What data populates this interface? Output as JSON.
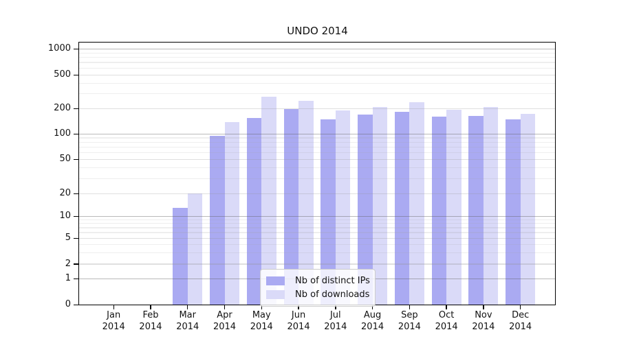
{
  "chart_data": {
    "type": "bar",
    "title": "UNDO 2014",
    "year_label": "2014",
    "categories": [
      "Jan",
      "Feb",
      "Mar",
      "Apr",
      "May",
      "Jun",
      "Jul",
      "Aug",
      "Sep",
      "Oct",
      "Nov",
      "Dec"
    ],
    "series": [
      {
        "name": "Nb of distinct IPs",
        "color": "#aaaaf2",
        "values": [
          0,
          0,
          13,
          95,
          155,
          200,
          150,
          170,
          185,
          160,
          165,
          150
        ]
      },
      {
        "name": "Nb of downloads",
        "color": "#dadaf8",
        "values": [
          0,
          0,
          20,
          140,
          280,
          250,
          190,
          210,
          240,
          195,
          210,
          175
        ]
      }
    ],
    "y_axis": {
      "scale": "symlog",
      "ticks": [
        0,
        1,
        2,
        5,
        10,
        20,
        50,
        100,
        200,
        500,
        1000
      ],
      "decade_gridlines": [
        1,
        10,
        100,
        1000
      ],
      "mid_gridlines": [
        2,
        5,
        20,
        50,
        200,
        500
      ],
      "minor_gridlines": [
        3,
        4,
        6,
        7,
        8,
        9,
        30,
        40,
        60,
        70,
        80,
        90,
        300,
        400,
        600,
        700,
        800,
        900
      ],
      "range_top": 1000,
      "range_bottom": 0
    },
    "legend": {
      "position": "lower center"
    },
    "grid": true,
    "colors": {
      "background": "#ffffff",
      "axis": "#000000",
      "text": "#111111"
    }
  }
}
